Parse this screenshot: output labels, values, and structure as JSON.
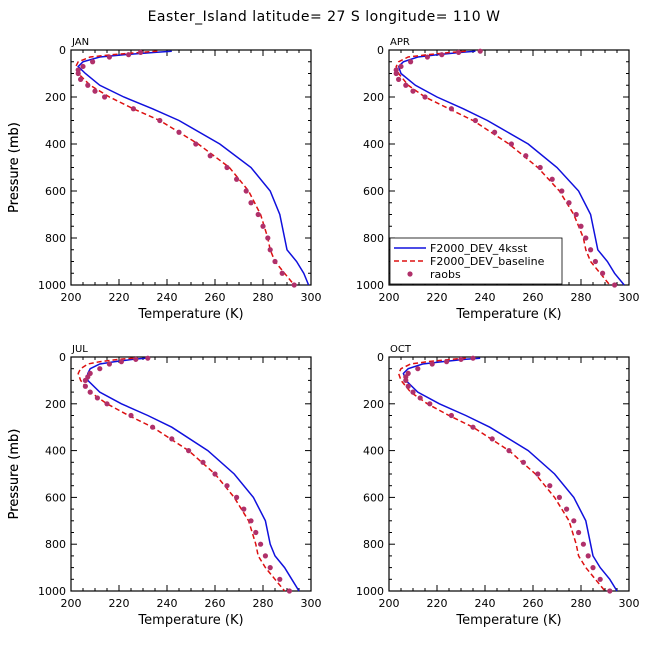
{
  "title": "Easter_Island  latitude= 27 S longitude= 110 W",
  "colors": {
    "model_a": "#1010dd",
    "model_b": "#dd1010",
    "obs": "#b0306a"
  },
  "legend": {
    "entries": [
      "F2000_DEV_4ksst",
      "F2000_DEV_baseline",
      "raobs"
    ]
  },
  "chart_data": [
    {
      "type": "line",
      "title": "JAN",
      "xlabel": "Temperature (K)",
      "ylabel": "Pressure (mb)",
      "xlim": [
        200,
        300
      ],
      "ylim": [
        1000,
        0
      ],
      "xticks": [
        200,
        220,
        240,
        260,
        280,
        300
      ],
      "yticks": [
        0,
        200,
        400,
        600,
        800,
        1000
      ],
      "series": [
        {
          "name": "F2000_DEV_4ksst",
          "style": "solid",
          "pressure": [
            5,
            10,
            20,
            30,
            50,
            70,
            100,
            150,
            200,
            250,
            300,
            400,
            500,
            600,
            700,
            800,
            850,
            900,
            950,
            1000
          ],
          "temperature": [
            242,
            235,
            222,
            212,
            205,
            203,
            206,
            212,
            222,
            234,
            245,
            262,
            275,
            283,
            287,
            289,
            290,
            294,
            297,
            299
          ]
        },
        {
          "name": "F2000_DEV_baseline",
          "style": "dashed",
          "pressure": [
            5,
            10,
            20,
            30,
            50,
            70,
            100,
            150,
            200,
            250,
            300,
            400,
            500,
            600,
            700,
            800,
            850,
            900,
            950,
            1000
          ],
          "temperature": [
            236,
            229,
            217,
            208,
            203,
            202,
            203,
            208,
            216,
            226,
            237,
            253,
            266,
            274,
            279,
            282,
            283,
            285,
            289,
            293
          ]
        },
        {
          "name": "raobs",
          "style": "markers",
          "pressure": [
            10,
            20,
            30,
            50,
            70,
            85,
            100,
            125,
            150,
            175,
            200,
            250,
            300,
            350,
            400,
            450,
            500,
            550,
            600,
            650,
            700,
            750,
            800,
            850,
            900,
            950,
            1000
          ],
          "temperature": [
            229,
            224,
            216,
            209,
            205,
            203,
            203,
            204,
            207,
            210,
            214,
            226,
            237,
            245,
            252,
            258,
            265,
            269,
            273,
            275,
            278,
            280,
            282,
            283,
            285,
            288,
            293
          ]
        }
      ]
    },
    {
      "type": "line",
      "title": "APR",
      "xlabel": "Temperature (K)",
      "ylabel": "Pressure (mb)",
      "xlim": [
        200,
        300
      ],
      "ylim": [
        1000,
        0
      ],
      "xticks": [
        200,
        220,
        240,
        260,
        280,
        300
      ],
      "yticks": [
        0,
        200,
        400,
        600,
        800,
        1000
      ],
      "series": [
        {
          "name": "F2000_DEV_4ksst",
          "style": "solid",
          "pressure": [
            5,
            10,
            20,
            30,
            50,
            70,
            100,
            150,
            200,
            250,
            300,
            400,
            500,
            600,
            700,
            800,
            850,
            900,
            950,
            1000
          ],
          "temperature": [
            236,
            230,
            220,
            212,
            206,
            204,
            205,
            211,
            220,
            231,
            241,
            258,
            270,
            279,
            284,
            286,
            287,
            291,
            294,
            298
          ]
        },
        {
          "name": "F2000_DEV_baseline",
          "style": "dashed",
          "pressure": [
            5,
            10,
            20,
            30,
            50,
            70,
            100,
            150,
            200,
            250,
            300,
            400,
            500,
            600,
            700,
            800,
            850,
            900,
            950,
            1000
          ],
          "temperature": [
            232,
            226,
            216,
            208,
            204,
            203,
            204,
            208,
            215,
            225,
            235,
            250,
            262,
            271,
            277,
            281,
            282,
            284,
            288,
            292
          ]
        },
        {
          "name": "raobs",
          "style": "markers",
          "pressure": [
            5,
            10,
            20,
            30,
            50,
            70,
            85,
            100,
            125,
            150,
            175,
            200,
            250,
            300,
            350,
            400,
            450,
            500,
            550,
            600,
            650,
            700,
            750,
            800,
            850,
            900,
            950,
            1000
          ],
          "temperature": [
            238,
            229,
            222,
            216,
            209,
            205,
            203,
            203,
            204,
            207,
            210,
            215,
            226,
            236,
            244,
            251,
            257,
            263,
            268,
            272,
            275,
            278,
            280,
            282,
            284,
            286,
            289,
            294
          ]
        }
      ]
    },
    {
      "type": "line",
      "title": "JUL",
      "xlabel": "Temperature (K)",
      "ylabel": "Pressure (mb)",
      "xlim": [
        200,
        300
      ],
      "ylim": [
        1000,
        0
      ],
      "xticks": [
        200,
        220,
        240,
        260,
        280,
        300
      ],
      "yticks": [
        0,
        200,
        400,
        600,
        800,
        1000
      ],
      "series": [
        {
          "name": "F2000_DEV_4ksst",
          "style": "solid",
          "pressure": [
            5,
            10,
            20,
            30,
            50,
            70,
            100,
            150,
            200,
            250,
            300,
            400,
            500,
            600,
            700,
            800,
            850,
            900,
            950,
            1000
          ],
          "temperature": [
            231,
            226,
            218,
            212,
            208,
            207,
            207,
            212,
            221,
            232,
            242,
            257,
            268,
            276,
            281,
            283,
            285,
            289,
            292,
            295
          ]
        },
        {
          "name": "F2000_DEV_baseline",
          "style": "dashed",
          "pressure": [
            5,
            10,
            20,
            30,
            50,
            70,
            100,
            150,
            200,
            250,
            300,
            400,
            500,
            600,
            700,
            800,
            850,
            900,
            950,
            1000
          ],
          "temperature": [
            226,
            220,
            212,
            207,
            204,
            203,
            204,
            208,
            215,
            224,
            234,
            249,
            260,
            268,
            274,
            277,
            278,
            281,
            285,
            289
          ]
        },
        {
          "name": "raobs",
          "style": "markers",
          "pressure": [
            5,
            10,
            20,
            30,
            50,
            70,
            85,
            100,
            125,
            150,
            175,
            200,
            250,
            300,
            350,
            400,
            450,
            500,
            550,
            600,
            650,
            700,
            750,
            800,
            850,
            900,
            950,
            1000
          ],
          "temperature": [
            232,
            227,
            221,
            216,
            212,
            208,
            207,
            206,
            206,
            208,
            211,
            215,
            225,
            234,
            242,
            249,
            255,
            260,
            265,
            269,
            272,
            275,
            277,
            279,
            281,
            283,
            287,
            291
          ]
        }
      ]
    },
    {
      "type": "line",
      "title": "OCT",
      "xlabel": "Temperature (K)",
      "ylabel": "Pressure (mb)",
      "xlim": [
        200,
        300
      ],
      "ylim": [
        1000,
        0
      ],
      "xticks": [
        200,
        220,
        240,
        260,
        280,
        300
      ],
      "yticks": [
        0,
        200,
        400,
        600,
        800,
        1000
      ],
      "series": [
        {
          "name": "F2000_DEV_4ksst",
          "style": "solid",
          "pressure": [
            5,
            10,
            20,
            30,
            50,
            70,
            100,
            150,
            200,
            250,
            300,
            400,
            500,
            600,
            700,
            800,
            850,
            900,
            950,
            1000
          ],
          "temperature": [
            238,
            232,
            222,
            214,
            208,
            206,
            207,
            212,
            221,
            232,
            242,
            258,
            269,
            277,
            282,
            284,
            285,
            288,
            292,
            295
          ]
        },
        {
          "name": "F2000_DEV_baseline",
          "style": "dashed",
          "pressure": [
            5,
            10,
            20,
            30,
            50,
            70,
            100,
            150,
            200,
            250,
            300,
            400,
            500,
            600,
            700,
            800,
            850,
            900,
            950,
            1000
          ],
          "temperature": [
            232,
            226,
            216,
            209,
            205,
            204,
            205,
            209,
            216,
            225,
            235,
            250,
            261,
            269,
            275,
            278,
            279,
            282,
            286,
            290
          ]
        },
        {
          "name": "raobs",
          "style": "markers",
          "pressure": [
            5,
            10,
            20,
            30,
            50,
            70,
            85,
            100,
            125,
            150,
            175,
            200,
            250,
            300,
            350,
            400,
            450,
            500,
            550,
            600,
            650,
            700,
            750,
            800,
            850,
            900,
            950,
            1000
          ],
          "temperature": [
            235,
            230,
            224,
            218,
            212,
            208,
            207,
            207,
            208,
            210,
            213,
            217,
            226,
            235,
            243,
            250,
            256,
            262,
            267,
            271,
            274,
            277,
            279,
            281,
            283,
            285,
            288,
            292
          ]
        }
      ]
    }
  ]
}
